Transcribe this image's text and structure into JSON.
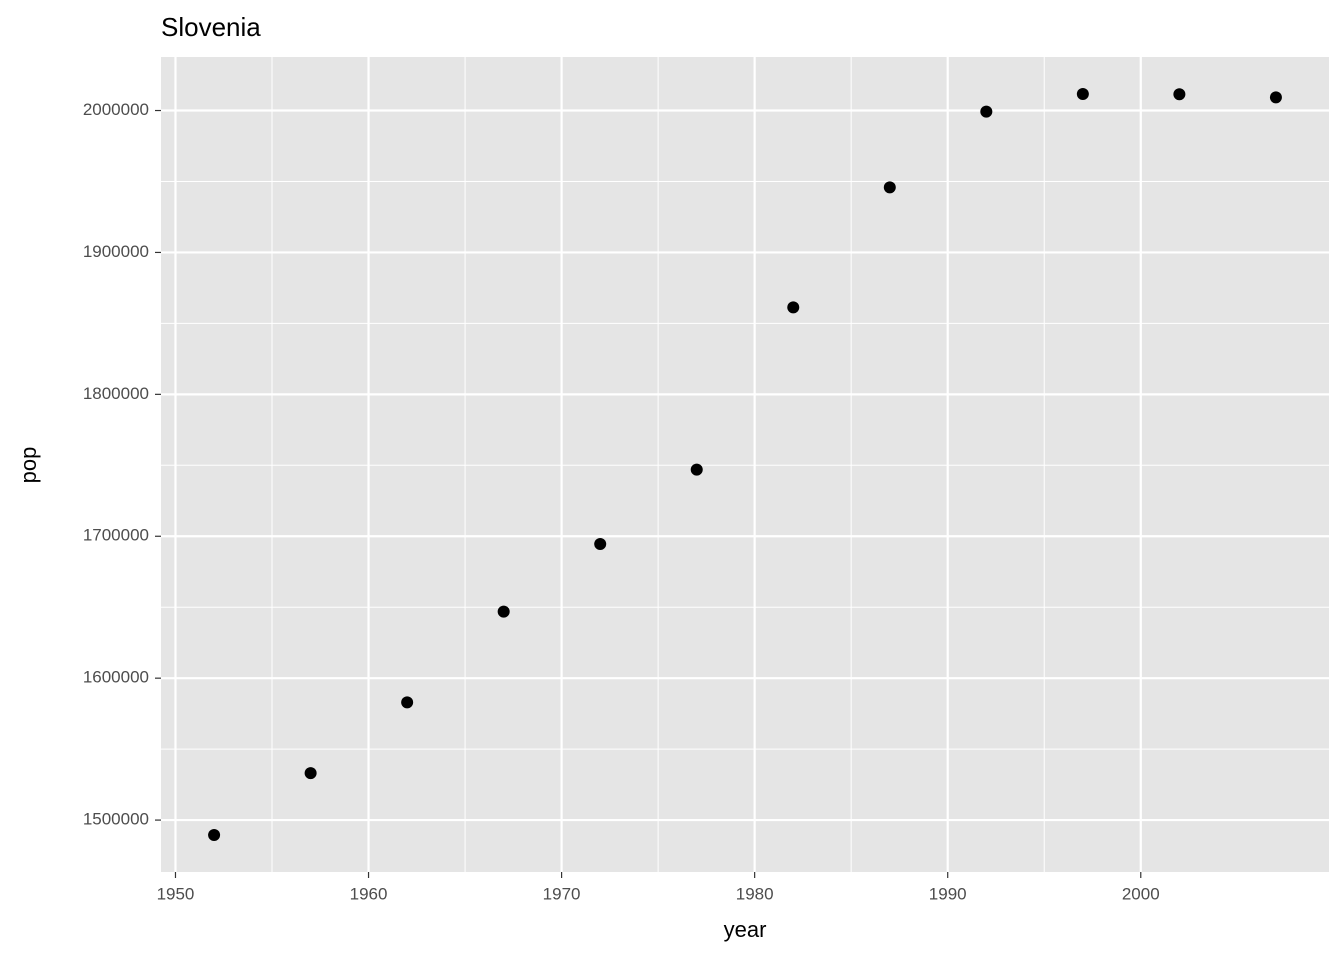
{
  "chart_data": {
    "type": "scatter",
    "title": "Slovenia",
    "x_label": "year",
    "y_label": "pop",
    "x": [
      1952,
      1957,
      1962,
      1967,
      1972,
      1977,
      1982,
      1987,
      1992,
      1997,
      2002,
      2007
    ],
    "values": [
      1489518,
      1533070,
      1582962,
      1646912,
      1694510,
      1746919,
      1861252,
      1945870,
      1999210,
      2011612,
      2011497,
      2009245
    ],
    "color": "#000000",
    "xlim": [
      1949.25,
      2009.75
    ],
    "xticks": [
      1950,
      1960,
      1970,
      1980,
      1990,
      2000
    ],
    "ylim": [
      1463413,
      2037717
    ],
    "yticks": [
      1500000,
      1600000,
      1700000,
      1800000,
      1900000,
      2000000
    ],
    "grid": true
  }
}
